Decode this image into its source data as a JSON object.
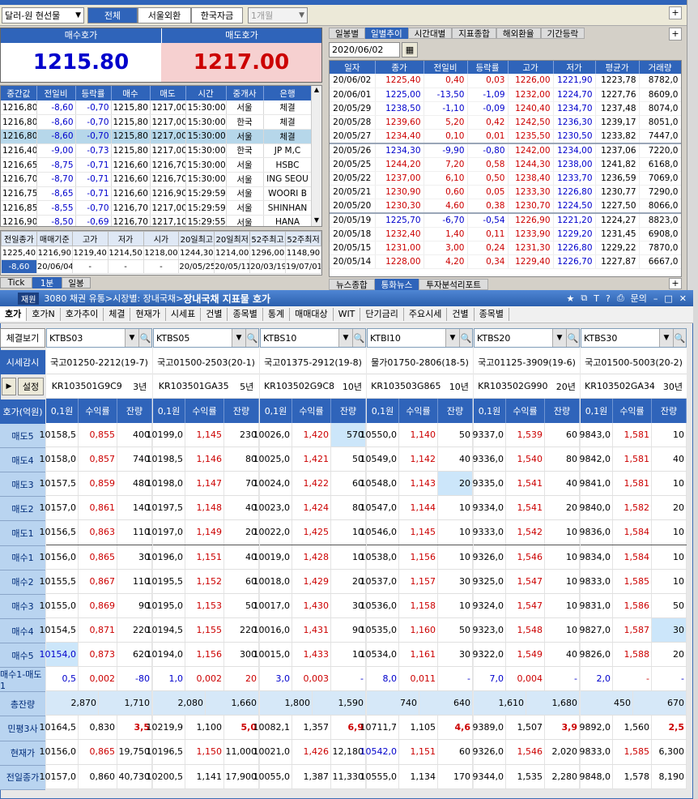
{
  "toolbar": {
    "currency": "달러-원 현선물",
    "tabs": [
      "전체",
      "서울외환",
      "한국자금"
    ],
    "period": "1개월"
  },
  "quote": {
    "bid_label": "매수호가",
    "ask_label": "매도호가",
    "bid": "1215.80",
    "ask": "1217.00"
  },
  "trades": {
    "headers": [
      "중간값",
      "전일비",
      "등락률",
      "매수",
      "매도",
      "시간",
      "중개사",
      "은행"
    ],
    "rows": [
      [
        "1216,80",
        "-8,60",
        "-0,70",
        "1215,80",
        "1217,00",
        "15:30:00",
        "서울",
        "체결"
      ],
      [
        "1216,80",
        "-8,60",
        "-0,70",
        "1215,80",
        "1217,00",
        "15:30:00",
        "한국",
        "체결"
      ],
      [
        "1216,80",
        "-8,60",
        "-0,70",
        "1215,80",
        "1217,00",
        "15:30:00",
        "서울",
        "체결"
      ],
      [
        "1216,40",
        "-9,00",
        "-0,73",
        "1215,80",
        "1217,00",
        "15:30:00",
        "한국",
        "JP M,C"
      ],
      [
        "1216,65",
        "-8,75",
        "-0,71",
        "1216,60",
        "1216,70",
        "15:30:00",
        "서울",
        "HSBC"
      ],
      [
        "1216,70",
        "-8,70",
        "-0,71",
        "1216,60",
        "1216,70",
        "15:30:00",
        "서울",
        "ING SEOU"
      ],
      [
        "1216,75",
        "-8,65",
        "-0,71",
        "1216,60",
        "1216,90",
        "15:29:59",
        "서울",
        "WOORI B"
      ],
      [
        "1216,85",
        "-8,55",
        "-0,70",
        "1216,70",
        "1217,00",
        "15:29:59",
        "서울",
        "SHINHAN"
      ],
      [
        "1216,90",
        "-8,50",
        "-0,69",
        "1216,70",
        "1217,10",
        "15:29:55",
        "서울",
        "HANA"
      ]
    ]
  },
  "summary": {
    "headers": [
      "전일종가",
      "매매기준",
      "고가",
      "저가",
      "시가",
      "20일최고",
      "20일최저",
      "52주최고",
      "52주최저"
    ],
    "row1": [
      "1225,40",
      "1216,90",
      "1219,40",
      "1214,50",
      "1218,00",
      "1244,30",
      "1214,00",
      "1296,00",
      "1148,90"
    ],
    "row2": [
      "-8,60",
      "20/06/04",
      "-",
      "-",
      "-",
      "20/05/25",
      "20/05/11",
      "20/03/19",
      "19/07/01"
    ]
  },
  "lower_tabs": [
    "Tick",
    "1분",
    "일봉"
  ],
  "daily": {
    "tabs": [
      "일봉별",
      "일별추이",
      "시간대별",
      "지표종합",
      "해외환율",
      "기간등락"
    ],
    "date": "2020/06/02",
    "headers": [
      "일자",
      "종가",
      "전일비",
      "등락률",
      "고가",
      "저가",
      "평균가",
      "거래량"
    ],
    "rows": [
      [
        "20/06/02",
        "1225,40",
        "0,40",
        "0,03",
        "1226,00",
        "1221,90",
        "1223,78",
        "8782,0"
      ],
      [
        "20/06/01",
        "1225,00",
        "-13,50",
        "-1,09",
        "1232,00",
        "1224,70",
        "1227,76",
        "8609,0"
      ],
      [
        "20/05/29",
        "1238,50",
        "-1,10",
        "-0,09",
        "1240,40",
        "1234,70",
        "1237,48",
        "8074,0"
      ],
      [
        "20/05/28",
        "1239,60",
        "5,20",
        "0,42",
        "1242,50",
        "1236,30",
        "1239,17",
        "8051,0"
      ],
      [
        "20/05/27",
        "1234,40",
        "0,10",
        "0,01",
        "1235,50",
        "1230,50",
        "1233,82",
        "7447,0"
      ],
      [
        "20/05/26",
        "1234,30",
        "-9,90",
        "-0,80",
        "1242,00",
        "1234,00",
        "1237,06",
        "7220,0"
      ],
      [
        "20/05/25",
        "1244,20",
        "7,20",
        "0,58",
        "1244,30",
        "1238,00",
        "1241,82",
        "6168,0"
      ],
      [
        "20/05/22",
        "1237,00",
        "6,10",
        "0,50",
        "1238,40",
        "1233,70",
        "1236,59",
        "7069,0"
      ],
      [
        "20/05/21",
        "1230,90",
        "0,60",
        "0,05",
        "1233,30",
        "1226,80",
        "1230,77",
        "7290,0"
      ],
      [
        "20/05/20",
        "1230,30",
        "4,60",
        "0,38",
        "1230,70",
        "1224,50",
        "1227,50",
        "8066,0"
      ],
      [
        "20/05/19",
        "1225,70",
        "-6,70",
        "-0,54",
        "1226,90",
        "1221,20",
        "1224,27",
        "8823,0"
      ],
      [
        "20/05/18",
        "1232,40",
        "1,40",
        "0,11",
        "1233,90",
        "1229,20",
        "1231,45",
        "6908,0"
      ],
      [
        "20/05/15",
        "1231,00",
        "3,00",
        "0,24",
        "1231,30",
        "1226,80",
        "1229,22",
        "7870,0"
      ],
      [
        "20/05/14",
        "1228,00",
        "4,20",
        "0,34",
        "1229,40",
        "1226,70",
        "1227,87",
        "6667,0"
      ]
    ]
  },
  "news_tabs": [
    "뉴스종합",
    "통화뉴스",
    "투자분석리포트"
  ],
  "bond": {
    "title_prefix": "3080 채권 유통>시장별: 장내국채>",
    "title": "장내국채 지표물 호가",
    "title_badge": "재원",
    "win_btns": [
      "문의"
    ],
    "menu": [
      "호가",
      "호가N",
      "호가추이",
      "체결",
      "현재가",
      "시세표",
      "건별",
      "종목별",
      "통계",
      "매매대상",
      "WIT",
      "단기금리",
      "주요시세",
      "건별",
      "종목별"
    ],
    "side": {
      "btn1": "체결보기",
      "btn2": "시세감시",
      "btn3": "설정",
      "btn4": "호가(억원)"
    },
    "row_labels": [
      "매도5",
      "매도4",
      "매도3",
      "매도2",
      "매도1",
      "매수1",
      "매수2",
      "매수3",
      "매수4",
      "매수5",
      "매수1-매도1",
      "총잔량",
      "민평3사",
      "현재가",
      "전일종가"
    ],
    "col_head": [
      "0,1원",
      "수익률",
      "잔량"
    ],
    "cols": [
      {
        "code": "KTBS03",
        "name": "국고01250-2212(19-7)",
        "isin": "KR103501G9C9",
        "tenor": "3년",
        "rows": [
          [
            "10158,5",
            "0,855",
            "400"
          ],
          [
            "10158,0",
            "0,857",
            "740"
          ],
          [
            "10157,5",
            "0,859",
            "480"
          ],
          [
            "10157,0",
            "0,861",
            "140"
          ],
          [
            "10156,5",
            "0,863",
            "110"
          ],
          [
            "10156,0",
            "0,865",
            "30"
          ],
          [
            "10155,5",
            "0,867",
            "110"
          ],
          [
            "10155,0",
            "0,869",
            "90"
          ],
          [
            "10154,5",
            "0,871",
            "220"
          ],
          [
            "10154,0",
            "0,873",
            "620"
          ],
          [
            "0,5",
            "0,002",
            "-80"
          ]
        ],
        "total": [
          "2,870",
          "1,710"
        ],
        "mp": [
          "10164,5",
          "0,830",
          "3,5"
        ],
        "cur": [
          "10156,0",
          "0,865",
          "19,750"
        ],
        "prev": [
          "10157,0",
          "0,860",
          "40,730"
        ]
      },
      {
        "code": "KTBS05",
        "name": "국고01500-2503(20-1)",
        "isin": "KR103501GA35",
        "tenor": "5년",
        "rows": [
          [
            "10199,0",
            "1,145",
            "230"
          ],
          [
            "10198,5",
            "1,146",
            "80"
          ],
          [
            "10198,0",
            "1,147",
            "70"
          ],
          [
            "10197,5",
            "1,148",
            "40"
          ],
          [
            "10197,0",
            "1,149",
            "20"
          ],
          [
            "10196,0",
            "1,151",
            "40"
          ],
          [
            "10195,5",
            "1,152",
            "60"
          ],
          [
            "10195,0",
            "1,153",
            "50"
          ],
          [
            "10194,5",
            "1,155",
            "220"
          ],
          [
            "10194,0",
            "1,156",
            "300"
          ],
          [
            "1,0",
            "0,002",
            "20"
          ]
        ],
        "total": [
          "2,080",
          "1,660"
        ],
        "mp": [
          "10219,9",
          "1,100",
          "5,0"
        ],
        "cur": [
          "10196,5",
          "1,150",
          "11,000"
        ],
        "prev": [
          "10200,5",
          "1,141",
          "17,900"
        ]
      },
      {
        "code": "KTBS10",
        "name": "국고01375-2912(19-8)",
        "isin": "KR103502G9C8",
        "tenor": "10년",
        "rows": [
          [
            "10026,0",
            "1,420",
            "570"
          ],
          [
            "10025,0",
            "1,421",
            "50"
          ],
          [
            "10024,0",
            "1,422",
            "60"
          ],
          [
            "10023,0",
            "1,424",
            "80"
          ],
          [
            "10022,0",
            "1,425",
            "10"
          ],
          [
            "10019,0",
            "1,428",
            "10"
          ],
          [
            "10018,0",
            "1,429",
            "20"
          ],
          [
            "10017,0",
            "1,430",
            "30"
          ],
          [
            "10016,0",
            "1,431",
            "90"
          ],
          [
            "10015,0",
            "1,433",
            "10"
          ],
          [
            "3,0",
            "0,003",
            "-"
          ]
        ],
        "total": [
          "1,800",
          "1,590"
        ],
        "mp": [
          "10082,1",
          "1,357",
          "6,9"
        ],
        "cur": [
          "10021,0",
          "1,426",
          "12,180"
        ],
        "prev": [
          "10055,0",
          "1,387",
          "11,330"
        ]
      },
      {
        "code": "KTBI10",
        "name": "물가01750-2806(18-5)",
        "isin": "KR103503G865",
        "tenor": "10년",
        "rows": [
          [
            "10550,0",
            "1,140",
            "50"
          ],
          [
            "10549,0",
            "1,142",
            "40"
          ],
          [
            "10548,0",
            "1,143",
            "20"
          ],
          [
            "10547,0",
            "1,144",
            "10"
          ],
          [
            "10546,0",
            "1,145",
            "10"
          ],
          [
            "10538,0",
            "1,156",
            "10"
          ],
          [
            "10537,0",
            "1,157",
            "30"
          ],
          [
            "10536,0",
            "1,158",
            "10"
          ],
          [
            "10535,0",
            "1,160",
            "50"
          ],
          [
            "10534,0",
            "1,161",
            "30"
          ],
          [
            "8,0",
            "0,011",
            "-"
          ]
        ],
        "total": [
          "740",
          "640"
        ],
        "mp": [
          "10711,7",
          "1,105",
          "4,6"
        ],
        "cur": [
          "10542,0",
          "1,151",
          "60"
        ],
        "prev": [
          "10555,0",
          "1,134",
          "170"
        ]
      },
      {
        "code": "KTBS20",
        "name": "국고01125-3909(19-6)",
        "isin": "KR103502G990",
        "tenor": "20년",
        "rows": [
          [
            "9337,0",
            "1,539",
            "60"
          ],
          [
            "9336,0",
            "1,540",
            "80"
          ],
          [
            "9335,0",
            "1,541",
            "40"
          ],
          [
            "9334,0",
            "1,541",
            "20"
          ],
          [
            "9333,0",
            "1,542",
            "10"
          ],
          [
            "9326,0",
            "1,546",
            "10"
          ],
          [
            "9325,0",
            "1,547",
            "10"
          ],
          [
            "9324,0",
            "1,547",
            "10"
          ],
          [
            "9323,0",
            "1,548",
            "10"
          ],
          [
            "9322,0",
            "1,549",
            "40"
          ],
          [
            "7,0",
            "0,004",
            "-"
          ]
        ],
        "total": [
          "1,610",
          "1,680"
        ],
        "mp": [
          "9389,0",
          "1,507",
          "3,9"
        ],
        "cur": [
          "9326,0",
          "1,546",
          "2,020"
        ],
        "prev": [
          "9344,0",
          "1,535",
          "2,280"
        ]
      },
      {
        "code": "KTBS30",
        "name": "국고01500-5003(20-2)",
        "isin": "KR103502GA34",
        "tenor": "30년",
        "rows": [
          [
            "9843,0",
            "1,581",
            "10"
          ],
          [
            "9842,0",
            "1,581",
            "40"
          ],
          [
            "9841,0",
            "1,581",
            "10"
          ],
          [
            "9840,0",
            "1,582",
            "20"
          ],
          [
            "9836,0",
            "1,584",
            "10"
          ],
          [
            "9834,0",
            "1,584",
            "10"
          ],
          [
            "9833,0",
            "1,585",
            "10"
          ],
          [
            "9831,0",
            "1,586",
            "50"
          ],
          [
            "9827,0",
            "1,587",
            "30"
          ],
          [
            "9826,0",
            "1,588",
            "20"
          ],
          [
            "2,0",
            "-",
            "-"
          ]
        ],
        "total": [
          "450",
          "670"
        ],
        "mp": [
          "9892,0",
          "1,560",
          "2,5"
        ],
        "cur": [
          "9833,0",
          "1,585",
          "6,300"
        ],
        "prev": [
          "9848,0",
          "1,578",
          "8,190"
        ]
      }
    ]
  }
}
